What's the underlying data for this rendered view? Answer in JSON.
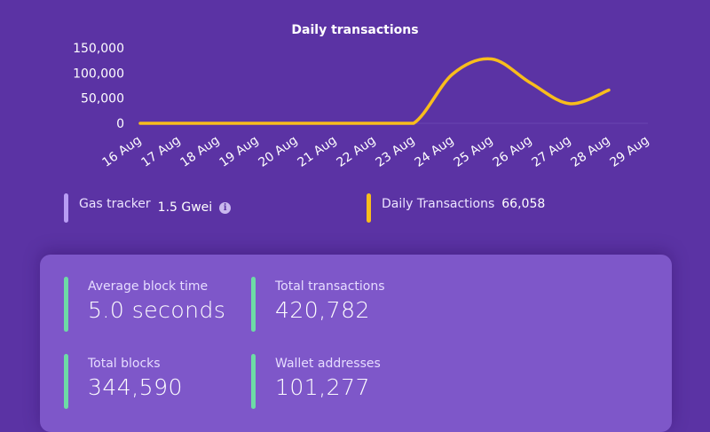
{
  "chart_data": {
    "type": "line",
    "title": "Daily transactions",
    "categories": [
      "16 Aug",
      "17 Aug",
      "18 Aug",
      "19 Aug",
      "20 Aug",
      "21 Aug",
      "22 Aug",
      "23 Aug",
      "24 Aug",
      "25 Aug",
      "26 Aug",
      "27 Aug",
      "28 Aug",
      "29 Aug"
    ],
    "series": [
      {
        "name": "Daily Transactions",
        "values": [
          0,
          0,
          0,
          0,
          0,
          0,
          0,
          0,
          98000,
          128000,
          80000,
          39000,
          66058,
          null
        ],
        "color": "#f8bd1c"
      }
    ],
    "yticks": [
      0,
      50000,
      100000,
      150000
    ],
    "ytick_labels": [
      "0",
      "50,000",
      "100,000",
      "150,000"
    ],
    "ylim": [
      0,
      150000
    ],
    "xlabel": "",
    "ylabel": "",
    "grid": false,
    "legend": "none"
  },
  "legend": {
    "gas": {
      "label": "Gas tracker",
      "value": "1.5 Gwei",
      "color": "#b89cf4"
    },
    "daily": {
      "label": "Daily Transactions",
      "value": "66,058",
      "color": "#f8bd1c"
    }
  },
  "stats": [
    {
      "label": "Average block time",
      "value": "5.0 seconds"
    },
    {
      "label": "Total transactions",
      "value": "420,782"
    },
    {
      "label": "Total blocks",
      "value": "344,590"
    },
    {
      "label": "Wallet addresses",
      "value": "101,277"
    }
  ]
}
